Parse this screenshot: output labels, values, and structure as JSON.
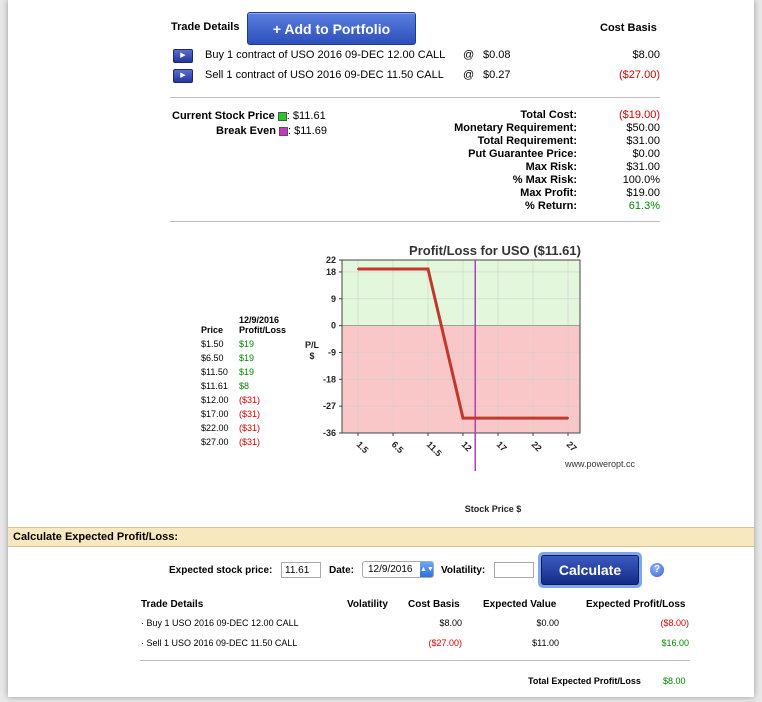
{
  "trade": {
    "header": "Trade Details",
    "add_button": "+ Add to Portfolio",
    "cost_basis_header": "Cost Basis",
    "legs": [
      {
        "desc": "Buy 1 contract of USO 2016 09-DEC 12.00 CALL",
        "at": "@",
        "price": "$0.08",
        "cost": "$8.00",
        "cost_color": "#000000"
      },
      {
        "desc": "Sell 1 contract of USO 2016 09-DEC 11.50 CALL",
        "at": "@",
        "price": "$0.27",
        "cost": "($27.00)",
        "cost_color": "#d40000"
      }
    ]
  },
  "stock": {
    "current_label": "Current Stock Price",
    "current_value": ": $11.61",
    "current_color": "#22cc22",
    "break_even_label": "Break Even",
    "break_even_value": ": $11.69",
    "break_even_color": "#cc33cc"
  },
  "summary": [
    {
      "label": "Total Cost:",
      "value": "($19.00)",
      "color": "#d40000"
    },
    {
      "label": "Monetary Requirement:",
      "value": "$50.00",
      "color": "#000000"
    },
    {
      "label": "Total Requirement:",
      "value": "$31.00",
      "color": "#000000"
    },
    {
      "label": "Put Guarantee Price:",
      "value": "$0.00",
      "color": "#000000"
    },
    {
      "label": "Max Risk:",
      "value": "$31.00",
      "color": "#000000"
    },
    {
      "label": "% Max Risk:",
      "value": "100.0%",
      "color": "#000000"
    },
    {
      "label": "Max Profit:",
      "value": "$19.00",
      "color": "#000000"
    },
    {
      "label": "% Return:",
      "value": "61.3%",
      "color": "#008a00"
    }
  ],
  "pl_table": {
    "price_header": "Price",
    "date_header": "12/9/2016",
    "pl_header": "Profit/Loss",
    "rows": [
      {
        "price": "$1.50",
        "pl": "$19",
        "color": "#008a00"
      },
      {
        "price": "$6.50",
        "pl": "$19",
        "color": "#008a00"
      },
      {
        "price": "$11.50",
        "pl": "$19",
        "color": "#008a00"
      },
      {
        "price": "$11.61",
        "pl": "$8",
        "color": "#008a00"
      },
      {
        "price": "$12.00",
        "pl": "($31)",
        "color": "#d40000"
      },
      {
        "price": "$17.00",
        "pl": "($31)",
        "color": "#d40000"
      },
      {
        "price": "$22.00",
        "pl": "($31)",
        "color": "#d40000"
      },
      {
        "price": "$27.00",
        "pl": "($31)",
        "color": "#d40000"
      }
    ]
  },
  "chart_data": {
    "type": "line",
    "title": "Profit/Loss for USO ($11.61)",
    "ylabel": "P/L $",
    "xlabel": "Stock Price $",
    "watermark": "www.poweropt.cc",
    "x_ticks": [
      "1.5",
      "6.5",
      "11.5",
      "12",
      "17",
      "22",
      "27"
    ],
    "y_ticks": [
      "22",
      "18",
      "9",
      "0",
      "-9",
      "-18",
      "-27",
      "-36"
    ],
    "ylim": [
      -36,
      22
    ],
    "series": [
      {
        "x_index": [
          0,
          2,
          3,
          6
        ],
        "values": [
          19,
          19,
          -31,
          -31
        ],
        "color": "#c0392b"
      }
    ],
    "current_price_index": 3.35,
    "current_price_color": "#b040c0",
    "profit_color": "#e3f7dd",
    "loss_color": "#f9c7c7"
  },
  "calc": {
    "section_title": "Calculate Expected Profit/Loss:",
    "price_label": "Expected stock price:",
    "price_value": "11.61",
    "date_label": "Date:",
    "date_value": "12/9/2016",
    "vol_label": "Volatility:",
    "vol_value": "",
    "button": "Calculate",
    "help": "?",
    "headers": {
      "details": "Trade Details",
      "volatility": "Volatility",
      "cost_basis": "Cost Basis",
      "expected_value": "Expected Value",
      "expected_pl": "Expected Profit/Loss"
    },
    "rows": [
      {
        "desc": "· Buy 1 USO 2016 09-DEC 12.00 CALL",
        "cost": "$8.00",
        "cost_color": "#000000",
        "value": "$0.00",
        "pl": "($8.00)",
        "pl_color": "#d40000"
      },
      {
        "desc": "· Sell 1 USO 2016 09-DEC 11.50 CALL",
        "cost": "($27.00)",
        "cost_color": "#d40000",
        "value": "$11.00",
        "pl": "$16.00",
        "pl_color": "#008a00"
      }
    ],
    "total_label": "Total Expected Profit/Loss",
    "total_value": "$8.00",
    "total_color": "#008a00"
  }
}
